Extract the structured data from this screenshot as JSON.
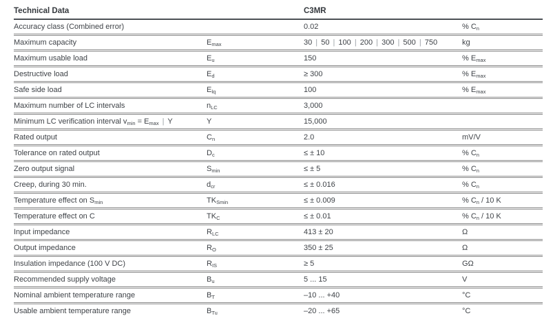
{
  "table": {
    "header": {
      "title": "Technical Data",
      "symbol_col": "",
      "model": "C3MR",
      "unit_col": ""
    },
    "rows": [
      {
        "parameter": "Accuracy class (Combined error)",
        "symbol": "",
        "value": "0.02",
        "unit": "% C_{n}"
      },
      {
        "parameter": "Maximum capacity",
        "symbol": "E_{max}",
        "value": "30 | 50 | 100 | 200 | 300 | 500 | 750",
        "unit": "kg"
      },
      {
        "parameter": "Maximum usable load",
        "symbol": "E_{u}",
        "value": "150",
        "unit": "% E_{max}"
      },
      {
        "parameter": "Destructive load",
        "symbol": "E_{d}",
        "value": "≥ 300",
        "unit": "% E_{max}"
      },
      {
        "parameter": "Safe side load",
        "symbol": "E_{lq}",
        "value": "100",
        "unit": "% E_{max}"
      },
      {
        "parameter": "Maximum number of LC intervals",
        "symbol": "n_{LC}",
        "value": "3,000",
        "unit": ""
      },
      {
        "parameter": "Minimum LC verification interval v_{min} = E_{max} | Y",
        "symbol": "Y",
        "value": "15,000",
        "unit": ""
      },
      {
        "parameter": "Rated output",
        "symbol": "C_{n}",
        "value": "2.0",
        "unit": "mV/V"
      },
      {
        "parameter": "Tolerance on rated output",
        "symbol": "D_{c}",
        "value": "≤ ± 10",
        "unit": "% C_{n}"
      },
      {
        "parameter": "Zero output signal",
        "symbol": "S_{min}",
        "value": "≤ ± 5",
        "unit": "% C_{n}"
      },
      {
        "parameter": "Creep, during 30 min.",
        "symbol": "d_{cr}",
        "value": "≤ ± 0.016",
        "unit": "% C_{n}"
      },
      {
        "parameter": "Temperature effect on S_{min}",
        "symbol": "TK_{Smin}",
        "value": "≤ ± 0.009",
        "unit": "% C_{n} / 10 K"
      },
      {
        "parameter": "Temperature effect on C",
        "symbol": "TK_{C}",
        "value": "≤ ± 0.01",
        "unit": "% C_{n} / 10 K"
      },
      {
        "parameter": "Input impedance",
        "symbol": "R_{LC}",
        "value": "413 ± 20",
        "unit": "Ω"
      },
      {
        "parameter": "Output impedance",
        "symbol": "R_{O}",
        "value": "350 ± 25",
        "unit": "Ω"
      },
      {
        "parameter": "Insulation impedance (100 V DC)",
        "symbol": "R_{IS}",
        "value": "≥ 5",
        "unit": "GΩ"
      },
      {
        "parameter": "Recommended supply voltage",
        "symbol": "B_{u}",
        "value": "5 ... 15",
        "unit": "V"
      },
      {
        "parameter": "Nominal ambient temperature range",
        "symbol": "B_{T}",
        "value": "–10 ... +40",
        "unit": "°C"
      },
      {
        "parameter": "Usable ambient temperature range",
        "symbol": "B_{Tu}",
        "value": "–20 ... +65",
        "unit": "°C"
      }
    ]
  }
}
